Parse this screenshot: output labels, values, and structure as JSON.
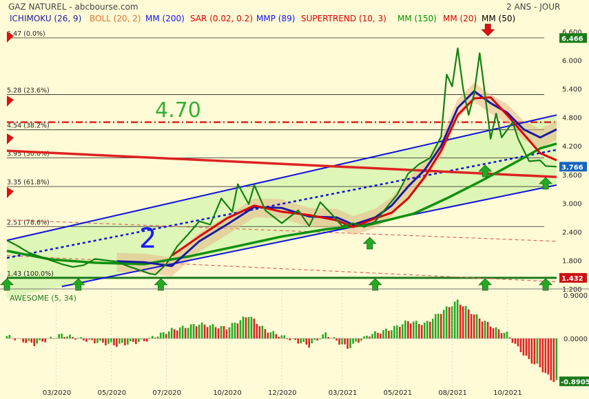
{
  "header": {
    "title": "GAZ NATUREL - abcbourse.com",
    "period": "2 ANS - JOUR"
  },
  "indicators": [
    {
      "label": "ICHIMOKU (26, 9)",
      "color": "#1a1aa0"
    },
    {
      "label": "BOLL (20, 2)",
      "color": "#e07030"
    },
    {
      "label": "MM (200)",
      "color": "#1010ff"
    },
    {
      "label": "SAR (0.02, 0.2)",
      "color": "#dd0000"
    },
    {
      "label": "MMP (89)",
      "color": "#1010ff"
    },
    {
      "label": "SUPERTREND (10, 3)",
      "color": "#dd0000"
    },
    {
      "label": "MM (150)",
      "color": "#009000"
    },
    {
      "label": "MM (20)",
      "color": "#dd0000"
    },
    {
      "label": "MM (50)",
      "color": "#000000"
    }
  ],
  "colors": {
    "background": "#fffbd6",
    "price": "#108010",
    "channel_fill": "#d8f5b0",
    "cloud": "#e8b88a",
    "axis_tag_last": "#1a7a1a",
    "axis_tag_low": "#cc1111",
    "channel": "#1010dd",
    "resistance": "#dd2222"
  },
  "annotations": {
    "level_label": "4.70",
    "wave_label": "2"
  },
  "chart_data": [
    {
      "type": "line",
      "title": "GAZ NATUREL",
      "ylim": [
        1.2,
        6.6
      ],
      "y_ticks": [
        "6.600",
        "6.000",
        "5.400",
        "4.800",
        "4.200",
        "3.600",
        "3.000",
        "2.400",
        "1.800",
        "1.200"
      ],
      "x_labels": [
        "03/2020",
        "05/2020",
        "07/2020",
        "10/2020",
        "12/2020",
        "03/2021",
        "05/2021",
        "08/2021",
        "10/2021"
      ],
      "last_price": "3.766",
      "last_price_value": 3.766,
      "top_tag": "6.466",
      "top_tag_value": 6.466,
      "low_tag": "1.432",
      "low_tag_value": 1.432,
      "fibonacci": [
        {
          "label": "6.47  (0.0%)",
          "value": 6.47
        },
        {
          "label": "5.28  (23.6%)",
          "value": 5.28
        },
        {
          "label": "4.54  (38.2%)",
          "value": 4.54
        },
        {
          "label": "3.95  (50.0%)",
          "value": 3.95
        },
        {
          "label": "3.35  (61.8%)",
          "value": 3.35
        },
        {
          "label": "2.51  (78.6%)",
          "value": 2.51
        },
        {
          "label": "1.43  (100.0%)",
          "value": 1.43
        }
      ],
      "series": [
        {
          "name": "price",
          "color": "#108010",
          "points": [
            [
              0,
              2.22
            ],
            [
              0.02,
              2.1
            ],
            [
              0.04,
              1.96
            ],
            [
              0.06,
              1.88
            ],
            [
              0.08,
              1.8
            ],
            [
              0.1,
              1.72
            ],
            [
              0.12,
              1.66
            ],
            [
              0.14,
              1.7
            ],
            [
              0.16,
              1.83
            ],
            [
              0.18,
              1.8
            ],
            [
              0.2,
              1.77
            ],
            [
              0.22,
              1.68
            ],
            [
              0.24,
              1.6
            ],
            [
              0.26,
              1.52
            ],
            [
              0.27,
              1.5
            ],
            [
              0.29,
              1.72
            ],
            [
              0.31,
              2.1
            ],
            [
              0.33,
              2.35
            ],
            [
              0.35,
              2.62
            ],
            [
              0.37,
              2.55
            ],
            [
              0.39,
              3.1
            ],
            [
              0.41,
              2.82
            ],
            [
              0.42,
              3.4
            ],
            [
              0.44,
              2.98
            ],
            [
              0.45,
              3.38
            ],
            [
              0.47,
              2.85
            ],
            [
              0.5,
              2.58
            ],
            [
              0.53,
              2.85
            ],
            [
              0.55,
              2.52
            ],
            [
              0.57,
              3.02
            ],
            [
              0.59,
              2.78
            ],
            [
              0.61,
              2.52
            ],
            [
              0.63,
              2.58
            ],
            [
              0.65,
              2.5
            ],
            [
              0.67,
              2.62
            ],
            [
              0.69,
              2.9
            ],
            [
              0.71,
              3.18
            ],
            [
              0.73,
              3.62
            ],
            [
              0.75,
              3.82
            ],
            [
              0.77,
              3.95
            ],
            [
              0.79,
              4.4
            ],
            [
              0.8,
              5.7
            ],
            [
              0.81,
              5.45
            ],
            [
              0.82,
              6.25
            ],
            [
              0.83,
              5.4
            ],
            [
              0.84,
              4.85
            ],
            [
              0.85,
              5.3
            ],
            [
              0.86,
              6.15
            ],
            [
              0.87,
              5.25
            ],
            [
              0.88,
              4.35
            ],
            [
              0.89,
              4.88
            ],
            [
              0.9,
              4.38
            ],
            [
              0.92,
              4.7
            ],
            [
              0.93,
              4.35
            ],
            [
              0.95,
              3.88
            ],
            [
              0.97,
              3.9
            ],
            [
              0.98,
              3.78
            ],
            [
              1.0,
              3.766
            ]
          ]
        },
        {
          "name": "ichimoku",
          "color": "#1a1aa0",
          "points": [
            [
              0.2,
              1.78
            ],
            [
              0.25,
              1.76
            ],
            [
              0.3,
              1.68
            ],
            [
              0.35,
              2.2
            ],
            [
              0.4,
              2.55
            ],
            [
              0.45,
              2.92
            ],
            [
              0.5,
              2.9
            ],
            [
              0.55,
              2.72
            ],
            [
              0.6,
              2.7
            ],
            [
              0.63,
              2.55
            ],
            [
              0.67,
              2.7
            ],
            [
              0.7,
              2.95
            ],
            [
              0.73,
              3.35
            ],
            [
              0.76,
              3.7
            ],
            [
              0.79,
              4.2
            ],
            [
              0.82,
              5.0
            ],
            [
              0.85,
              5.35
            ],
            [
              0.88,
              5.1
            ],
            [
              0.91,
              4.9
            ],
            [
              0.94,
              4.55
            ],
            [
              0.97,
              4.38
            ],
            [
              1.0,
              4.55
            ]
          ]
        },
        {
          "name": "supertrend",
          "color": "#dd0000",
          "points": [
            [
              0.3,
              1.9
            ],
            [
              0.35,
              2.3
            ],
            [
              0.4,
              2.68
            ],
            [
              0.45,
              2.95
            ],
            [
              0.5,
              2.82
            ],
            [
              0.55,
              2.75
            ],
            [
              0.6,
              2.64
            ],
            [
              0.63,
              2.5
            ],
            [
              0.67,
              2.68
            ],
            [
              0.7,
              2.8
            ],
            [
              0.73,
              3.1
            ],
            [
              0.76,
              3.55
            ],
            [
              0.79,
              4.1
            ],
            [
              0.82,
              4.85
            ],
            [
              0.85,
              5.2
            ],
            [
              0.88,
              5.22
            ],
            [
              0.91,
              4.85
            ],
            [
              0.94,
              4.45
            ],
            [
              0.97,
              4.05
            ],
            [
              1.0,
              3.9
            ]
          ]
        },
        {
          "name": "ma150",
          "color": "#109010",
          "points": [
            [
              0,
              2.0
            ],
            [
              0.08,
              1.82
            ],
            [
              0.16,
              1.75
            ],
            [
              0.25,
              1.72
            ],
            [
              0.33,
              1.88
            ],
            [
              0.42,
              2.1
            ],
            [
              0.5,
              2.3
            ],
            [
              0.58,
              2.45
            ],
            [
              0.66,
              2.55
            ],
            [
              0.74,
              2.78
            ],
            [
              0.8,
              3.1
            ],
            [
              0.86,
              3.45
            ],
            [
              0.9,
              3.7
            ],
            [
              0.94,
              3.95
            ],
            [
              0.97,
              4.15
            ],
            [
              1.0,
              4.25
            ]
          ]
        }
      ],
      "channel": {
        "upper": [
          [
            0,
            2.22
          ],
          [
            1.0,
            4.85
          ]
        ],
        "lower": [
          [
            0.1,
            1.25
          ],
          [
            1.0,
            3.38
          ]
        ],
        "mid": [
          [
            0,
            1.85
          ],
          [
            1.0,
            4.12
          ]
        ]
      },
      "resistance_line": [
        [
          0,
          4.1
        ],
        [
          1.0,
          3.55
        ]
      ],
      "dashed_level": 4.7,
      "support_level": 1.432
    },
    {
      "type": "bar",
      "title": "AWESOME (5, 34)",
      "ylim": [
        -0.9,
        0.9
      ],
      "y_ticks": [
        "0.9000",
        "0.0000"
      ],
      "last_value": "-0.8905",
      "last_value_num": -0.8905,
      "wave": [
        [
          0,
          0.05
        ],
        [
          0.05,
          -0.12
        ],
        [
          0.1,
          0.08
        ],
        [
          0.15,
          -0.05
        ],
        [
          0.2,
          -0.14
        ],
        [
          0.25,
          -0.05
        ],
        [
          0.3,
          0.18
        ],
        [
          0.35,
          0.3
        ],
        [
          0.4,
          0.22
        ],
        [
          0.44,
          0.48
        ],
        [
          0.47,
          0.18
        ],
        [
          0.5,
          0.05
        ],
        [
          0.55,
          -0.15
        ],
        [
          0.58,
          0.1
        ],
        [
          0.62,
          -0.2
        ],
        [
          0.66,
          0.08
        ],
        [
          0.7,
          0.2
        ],
        [
          0.73,
          0.36
        ],
        [
          0.76,
          0.3
        ],
        [
          0.79,
          0.55
        ],
        [
          0.82,
          0.78
        ],
        [
          0.85,
          0.5
        ],
        [
          0.87,
          0.35
        ],
        [
          0.89,
          0.2
        ],
        [
          0.91,
          0.1
        ],
        [
          0.93,
          -0.2
        ],
        [
          0.95,
          -0.45
        ],
        [
          0.97,
          -0.6
        ],
        [
          0.99,
          -0.85
        ],
        [
          1.0,
          -0.8905
        ]
      ]
    }
  ]
}
